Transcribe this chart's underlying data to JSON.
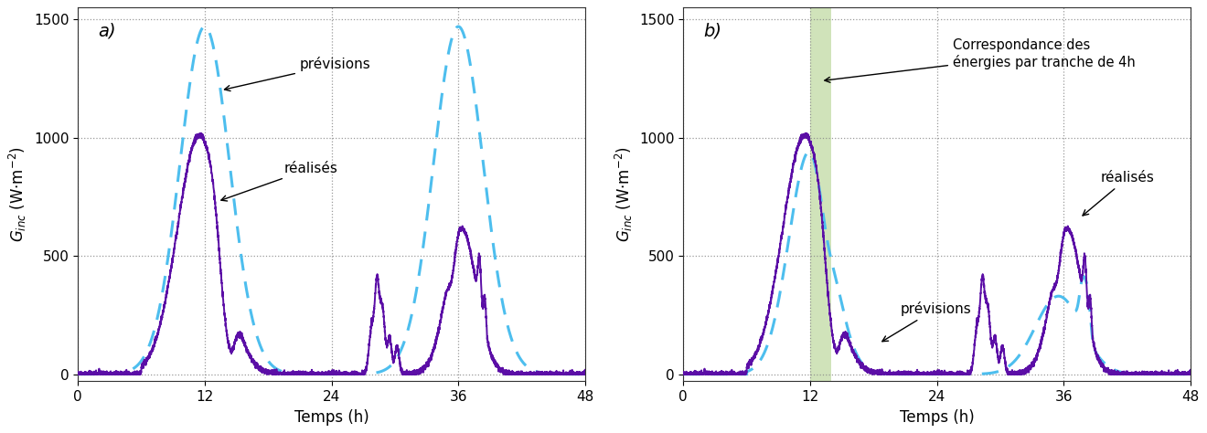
{
  "fig_width": 13.2,
  "fig_height": 4.74,
  "dpi": 100,
  "bg_color": "#ffffff",
  "panel_a_label": "a)",
  "panel_b_label": "b)",
  "xlabel": "Temps (h)",
  "ylabel_a": "G_inc (W.m-2)",
  "ylabel_b": "G_inc (W.m-2)",
  "xlim": [
    0,
    48
  ],
  "ylim": [
    -30,
    1550
  ],
  "xticks": [
    0,
    12,
    24,
    36,
    48
  ],
  "yticks": [
    0,
    500,
    1000,
    1500
  ],
  "grid_color": "#888888",
  "line_color_real": "#5B0EA6",
  "line_color_prev": "#4DBEEE",
  "green_shade_color": "#b8d496",
  "green_shade_alpha": 0.65,
  "green_shade_x0": 12.0,
  "green_shade_x1": 14.0
}
